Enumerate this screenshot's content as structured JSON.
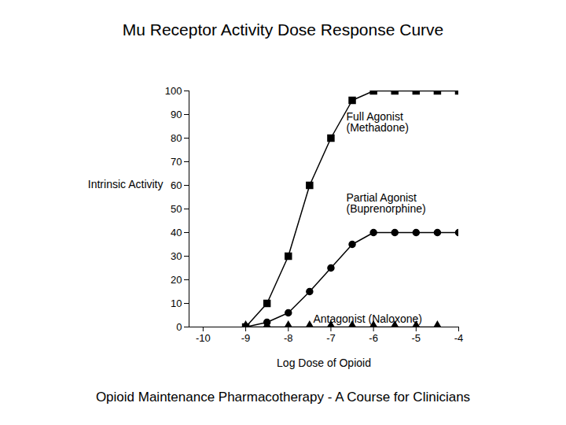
{
  "chart_data": {
    "type": "line",
    "title": "Mu Receptor Activity Dose Response Curve",
    "x_label": "Log Dose of Opioid",
    "y_label": "Intrinsic Activity",
    "caption": "Opioid Maintenance Pharmacotherapy - A Course for Clinicians",
    "x": [
      -9,
      -8.5,
      -8,
      -7.5,
      -7,
      -6.5,
      -6,
      -5.5,
      -5,
      -4.5,
      -4
    ],
    "series": [
      {
        "name": "Full Agonist\n(Methadone)",
        "color": "#000000",
        "marker": "square",
        "values": [
          0,
          10,
          30,
          60,
          80,
          96,
          100,
          100,
          100,
          100,
          100
        ]
      },
      {
        "name": "Partial Agonist\n(Buprenorphine)",
        "color": "#000000",
        "marker": "circle",
        "values": [
          0,
          2,
          6,
          15,
          25,
          35,
          40,
          40,
          40,
          40,
          40
        ]
      },
      {
        "name": "Antagonist (Naloxone)",
        "color": "#000000",
        "marker": "triangle",
        "values": [
          0,
          0,
          0,
          0,
          0,
          0,
          0,
          0,
          0,
          0,
          null
        ]
      }
    ],
    "xlim": [
      -10.33,
      -4
    ],
    "ylim": [
      0,
      100
    ],
    "xticks": [
      -10,
      -9,
      -8,
      -7,
      -6,
      -5,
      -4
    ],
    "yticks": [
      0,
      10,
      20,
      30,
      40,
      50,
      60,
      70,
      80,
      90,
      100
    ],
    "grid": false
  }
}
